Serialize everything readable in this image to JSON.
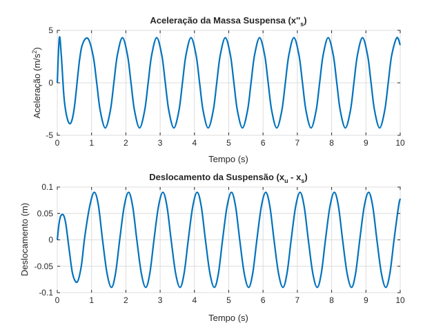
{
  "chart_data": [
    {
      "type": "line",
      "title": "Aceleração da Massa Suspensa (x''",
      "title_subscript": "s",
      "title_close": ")",
      "xlabel": "Tempo (s)",
      "ylabel_main": "Aceleração (m/s",
      "ylabel_superscript": "2",
      "ylabel_close": ")",
      "xlim": [
        0,
        10
      ],
      "ylim": [
        -5,
        5
      ],
      "xticks": [
        "0",
        "1",
        "2",
        "3",
        "4",
        "5",
        "6",
        "7",
        "8",
        "9",
        "10"
      ],
      "yticks": [
        "-5",
        "0",
        "5"
      ],
      "grid": true,
      "color": "#0072BD",
      "series": [
        {
          "x": [
            0,
            0.06,
            0.12,
            0.2,
            0.3,
            0.4,
            0.5,
            0.65,
            0.75,
            0.9,
            1.05,
            1.15,
            1.25,
            1.4,
            1.55,
            1.65,
            1.75,
            1.9,
            2.05,
            2.15,
            2.25,
            2.4,
            2.55,
            2.65,
            2.75,
            2.9,
            3.05,
            3.15,
            3.25,
            3.4,
            3.55,
            3.65,
            3.75,
            3.9,
            4.05,
            4.15,
            4.25,
            4.4,
            4.55,
            4.65,
            4.75,
            4.9,
            5.05,
            5.15,
            5.25,
            5.4,
            5.55,
            5.65,
            5.75,
            5.9,
            6.05,
            6.15,
            6.25,
            6.4,
            6.55,
            6.65,
            6.75,
            6.9,
            7.05,
            7.15,
            7.25,
            7.4,
            7.55,
            7.65,
            7.75,
            7.9,
            8.05,
            8.15,
            8.25,
            8.4,
            8.55,
            8.65,
            8.75,
            8.9,
            9.05,
            9.15,
            9.25,
            9.4,
            9.55,
            9.65,
            9.75,
            9.9,
            10
          ],
          "y": [
            0,
            4.3,
            2.5,
            -1.5,
            -3.5,
            -3.8,
            -2.3,
            2.2,
            3.8,
            4.2,
            2.5,
            0,
            -2.6,
            -4.3,
            -2.6,
            0,
            2.6,
            4.3,
            2.6,
            0,
            -2.6,
            -4.3,
            -2.6,
            0,
            2.6,
            4.3,
            2.6,
            0,
            -2.6,
            -4.3,
            -2.6,
            0,
            2.6,
            4.3,
            2.6,
            0,
            -2.6,
            -4.3,
            -2.6,
            0,
            2.6,
            4.3,
            2.6,
            0,
            -2.6,
            -4.3,
            -2.6,
            0,
            2.6,
            4.3,
            2.6,
            0,
            -2.6,
            -4.3,
            -2.6,
            0,
            2.6,
            4.3,
            2.6,
            0,
            -2.6,
            -4.3,
            -2.6,
            0,
            2.6,
            4.3,
            2.6,
            0,
            -2.6,
            -4.3,
            -2.6,
            0,
            2.6,
            4.3,
            2.6,
            0,
            -2.6,
            -4.3,
            -2.6,
            0,
            2.6,
            4.3,
            3.6
          ]
        }
      ]
    },
    {
      "type": "line",
      "title": "Deslocamento da Suspensão (x",
      "title_sub_1": "u",
      "title_mid": " - x",
      "title_sub_2": "s",
      "title_close": ")",
      "xlabel": "Tempo (s)",
      "ylabel": "Deslocamento (m)",
      "xlim": [
        0,
        10
      ],
      "ylim": [
        -0.1,
        0.1
      ],
      "xticks": [
        "0",
        "1",
        "2",
        "3",
        "4",
        "5",
        "6",
        "7",
        "8",
        "9",
        "10"
      ],
      "yticks": [
        "-0.1",
        "-0.05",
        "0",
        "0.05",
        "0.1"
      ],
      "grid": true,
      "color": "#0072BD",
      "series": [
        {
          "x": [
            0,
            0.05,
            0.1,
            0.18,
            0.25,
            0.35,
            0.45,
            0.58,
            0.7,
            0.8,
            0.95,
            1.08,
            1.2,
            1.32,
            1.45,
            1.58,
            1.7,
            1.82,
            1.95,
            2.08,
            2.2,
            2.32,
            2.45,
            2.58,
            2.7,
            2.82,
            2.95,
            3.08,
            3.2,
            3.32,
            3.45,
            3.58,
            3.7,
            3.82,
            3.95,
            4.08,
            4.2,
            4.32,
            4.45,
            4.58,
            4.7,
            4.82,
            4.95,
            5.08,
            5.2,
            5.32,
            5.45,
            5.58,
            5.7,
            5.82,
            5.95,
            6.08,
            6.2,
            6.32,
            6.45,
            6.58,
            6.7,
            6.82,
            6.95,
            7.08,
            7.2,
            7.32,
            7.45,
            7.58,
            7.7,
            7.82,
            7.95,
            8.08,
            8.2,
            8.32,
            8.45,
            8.58,
            8.7,
            8.82,
            8.95,
            9.08,
            9.2,
            9.32,
            9.45,
            9.58,
            9.7,
            9.82,
            9.95,
            10
          ],
          "y": [
            0,
            0.03,
            0.045,
            0.047,
            0.03,
            -0.02,
            -0.065,
            -0.08,
            -0.05,
            0.005,
            0.065,
            0.09,
            0.065,
            0,
            -0.063,
            -0.09,
            -0.063,
            0,
            0.063,
            0.09,
            0.063,
            0,
            -0.063,
            -0.09,
            -0.063,
            0,
            0.063,
            0.09,
            0.063,
            0,
            -0.063,
            -0.09,
            -0.063,
            0,
            0.063,
            0.09,
            0.063,
            0,
            -0.063,
            -0.09,
            -0.063,
            0,
            0.063,
            0.09,
            0.063,
            0,
            -0.063,
            -0.09,
            -0.063,
            0,
            0.063,
            0.09,
            0.063,
            0,
            -0.063,
            -0.09,
            -0.063,
            0,
            0.063,
            0.09,
            0.063,
            0,
            -0.063,
            -0.09,
            -0.063,
            0,
            0.063,
            0.09,
            0.063,
            0,
            -0.063,
            -0.09,
            -0.063,
            0,
            0.063,
            0.09,
            0.063,
            0,
            -0.063,
            -0.09,
            -0.063,
            0,
            0.063,
            0.078
          ]
        }
      ]
    }
  ]
}
